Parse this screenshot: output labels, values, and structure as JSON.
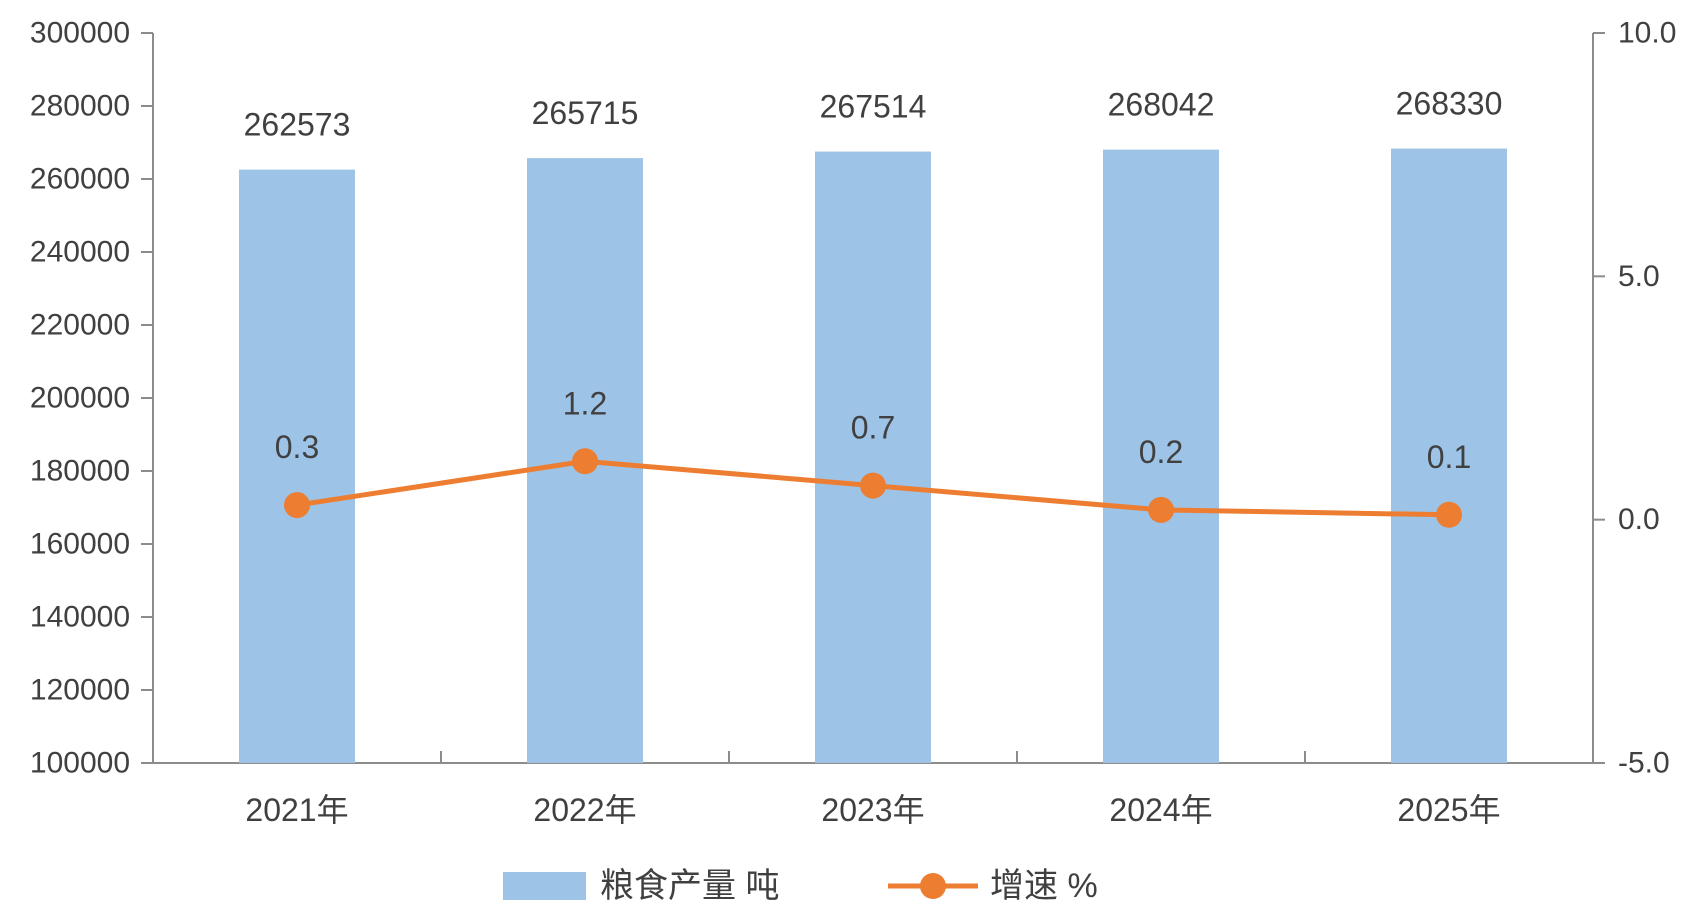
{
  "chart_data": {
    "type": "bar",
    "categories": [
      "2021年",
      "2022年",
      "2023年",
      "2024年",
      "2025年"
    ],
    "series": [
      {
        "name": "粮食产量 吨",
        "type": "bar",
        "axis": "left",
        "values": [
          262573,
          265715,
          267514,
          268042,
          268330
        ],
        "labels": [
          "262573",
          "265715",
          "267514",
          "268042",
          "268330"
        ],
        "color": "#9DC3E6"
      },
      {
        "name": "增速 %",
        "type": "line",
        "axis": "right",
        "values": [
          0.3,
          1.2,
          0.7,
          0.2,
          0.1
        ],
        "labels": [
          "0.3",
          "1.2",
          "0.7",
          "0.2",
          "0.1"
        ],
        "color": "#ED7D31"
      }
    ],
    "y_left": {
      "min": 100000,
      "max": 300000,
      "ticks": [
        100000,
        120000,
        140000,
        160000,
        180000,
        200000,
        220000,
        240000,
        260000,
        280000,
        300000
      ],
      "tick_labels": [
        "100000",
        "120000",
        "140000",
        "160000",
        "180000",
        "200000",
        "220000",
        "240000",
        "260000",
        "280000",
        "300000"
      ]
    },
    "y_right": {
      "min": -5,
      "max": 10,
      "ticks": [
        -5,
        0,
        5,
        10
      ],
      "tick_labels": [
        "-5.0",
        "0.0",
        "5.0",
        "10.0"
      ]
    },
    "grid": false,
    "legend": "bottom",
    "axis_color": "#8C8C8C"
  }
}
